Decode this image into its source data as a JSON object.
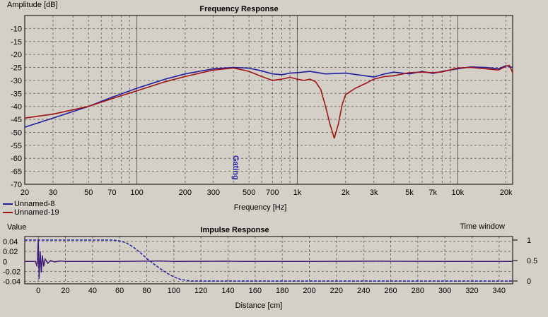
{
  "colors": {
    "bg": "#d4d0c8",
    "series1": "#1e1ea0",
    "series2": "#a01414",
    "marker": "#1e1ea0"
  },
  "chart_data": [
    {
      "type": "line",
      "title": "Frequency Response",
      "ylabel": "Amplitude [dB]",
      "xlabel": "Frequency [Hz]",
      "xscale": "log",
      "xlim": [
        20,
        22000
      ],
      "ylim": [
        -70,
        -5
      ],
      "grid": true,
      "x_tick_values": [
        20,
        30,
        50,
        70,
        100,
        200,
        300,
        500,
        700,
        1000,
        2000,
        3000,
        5000,
        7000,
        10000,
        20000
      ],
      "x_tick_labels": [
        "20",
        "30",
        "50",
        "70",
        "100",
        "200",
        "300",
        "500",
        "700",
        "1k",
        "2k",
        "3k",
        "5k",
        "7k",
        "10k",
        "20k"
      ],
      "y_ticks": [
        -10,
        -15,
        -20,
        -25,
        -30,
        -35,
        -40,
        -45,
        -50,
        -55,
        -60,
        -65,
        -70
      ],
      "legend_position": "bottom-left",
      "marker": {
        "label": "Gating",
        "x": 400
      },
      "series": [
        {
          "name": "Unnamed-8",
          "color": "#1e1ea0",
          "points": [
            [
              20,
              -48
            ],
            [
              30,
              -44.5
            ],
            [
              50,
              -40
            ],
            [
              70,
              -36.5
            ],
            [
              100,
              -33
            ],
            [
              150,
              -29.5
            ],
            [
              200,
              -27.5
            ],
            [
              300,
              -25.5
            ],
            [
              400,
              -25
            ],
            [
              500,
              -25.3
            ],
            [
              600,
              -26.3
            ],
            [
              700,
              -27.5
            ],
            [
              800,
              -27.8
            ],
            [
              900,
              -27.2
            ],
            [
              1000,
              -27
            ],
            [
              1200,
              -26.5
            ],
            [
              1500,
              -27.5
            ],
            [
              2000,
              -27.2
            ],
            [
              2500,
              -28
            ],
            [
              3000,
              -28.7
            ],
            [
              3500,
              -27.5
            ],
            [
              4000,
              -26.8
            ],
            [
              5000,
              -27.5
            ],
            [
              6000,
              -26.5
            ],
            [
              7000,
              -27.3
            ],
            [
              8000,
              -26.5
            ],
            [
              10000,
              -25.5
            ],
            [
              12000,
              -24.8
            ],
            [
              15000,
              -25
            ],
            [
              18000,
              -25.5
            ],
            [
              20000,
              -24.3
            ],
            [
              22000,
              -25
            ]
          ]
        },
        {
          "name": "Unnamed-19",
          "color": "#a01414",
          "points": [
            [
              20,
              -44.5
            ],
            [
              30,
              -43
            ],
            [
              50,
              -40
            ],
            [
              70,
              -37
            ],
            [
              100,
              -34
            ],
            [
              150,
              -30.5
            ],
            [
              200,
              -28.5
            ],
            [
              300,
              -26
            ],
            [
              400,
              -25.2
            ],
            [
              500,
              -26.5
            ],
            [
              600,
              -28.5
            ],
            [
              700,
              -30
            ],
            [
              800,
              -29.5
            ],
            [
              900,
              -28.8
            ],
            [
              1000,
              -29.5
            ],
            [
              1100,
              -30
            ],
            [
              1200,
              -29.5
            ],
            [
              1300,
              -30.5
            ],
            [
              1400,
              -33.5
            ],
            [
              1500,
              -40
            ],
            [
              1600,
              -47
            ],
            [
              1700,
              -52.2
            ],
            [
              1800,
              -47
            ],
            [
              1900,
              -39.5
            ],
            [
              2000,
              -35.5
            ],
            [
              2300,
              -33
            ],
            [
              2700,
              -31
            ],
            [
              3000,
              -29.5
            ],
            [
              3500,
              -28.5
            ],
            [
              4000,
              -28.2
            ],
            [
              5000,
              -27
            ],
            [
              6000,
              -26.8
            ],
            [
              7000,
              -27
            ],
            [
              8000,
              -26.7
            ],
            [
              10000,
              -25.2
            ],
            [
              12000,
              -25
            ],
            [
              15000,
              -25.5
            ],
            [
              18000,
              -26
            ],
            [
              20000,
              -24.5
            ],
            [
              21000,
              -24.2
            ],
            [
              22000,
              -27
            ]
          ]
        }
      ]
    },
    {
      "type": "line",
      "title": "Impulse Response",
      "ylabel": "Value",
      "y2label": "Time window",
      "xlabel": "Distance [cm]",
      "xlim": [
        -10,
        350
      ],
      "ylim": [
        -0.045,
        0.05
      ],
      "y2lim": [
        0,
        1
      ],
      "grid": true,
      "x_ticks": [
        0,
        20,
        40,
        60,
        80,
        100,
        120,
        140,
        160,
        180,
        200,
        220,
        240,
        260,
        280,
        300,
        320,
        340
      ],
      "y_ticks": [
        0.04,
        0.02,
        0,
        -0.02,
        -0.04
      ],
      "y_tick_labels": [
        "0.04",
        "0.02",
        "0",
        "-0.02",
        "-0.04"
      ],
      "y2_ticks": [
        1,
        0.5,
        0
      ],
      "y2_tick_labels": [
        "1",
        "0.5",
        "0"
      ],
      "impulse": [
        [
          -10,
          0
        ],
        [
          -5,
          0
        ],
        [
          -2,
          0
        ],
        [
          -1,
          -0.01
        ],
        [
          0,
          0.045
        ],
        [
          0.6,
          -0.035
        ],
        [
          1.4,
          0.02
        ],
        [
          2.2,
          -0.022
        ],
        [
          3,
          0.012
        ],
        [
          4,
          -0.01
        ],
        [
          5,
          0.005
        ],
        [
          7,
          -0.004
        ],
        [
          9,
          0.002
        ],
        [
          12,
          -0.001
        ],
        [
          16,
          0.001
        ],
        [
          20,
          0
        ],
        [
          30,
          0
        ],
        [
          60,
          0
        ],
        [
          90,
          0.001
        ],
        [
          100,
          0
        ],
        [
          140,
          0.0005
        ],
        [
          150,
          0
        ],
        [
          200,
          0
        ],
        [
          250,
          0.0005
        ],
        [
          300,
          0
        ],
        [
          350,
          0
        ]
      ],
      "window": [
        [
          -10,
          1
        ],
        [
          55,
          1
        ],
        [
          60,
          0.98
        ],
        [
          65,
          0.93
        ],
        [
          70,
          0.83
        ],
        [
          75,
          0.7
        ],
        [
          80,
          0.55
        ],
        [
          85,
          0.42
        ],
        [
          90,
          0.3
        ],
        [
          95,
          0.19
        ],
        [
          100,
          0.1
        ],
        [
          105,
          0.04
        ],
        [
          110,
          0.01
        ],
        [
          113,
          0
        ],
        [
          350,
          0
        ]
      ]
    }
  ]
}
